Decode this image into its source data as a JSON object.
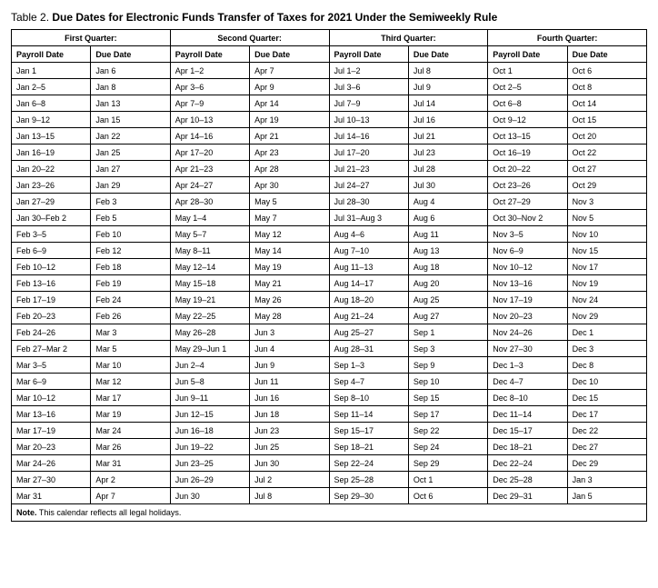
{
  "title_prefix": "Table 2. ",
  "title_main": "Due Dates for Electronic Funds Transfer of Taxes for 2021 Under the Semiweekly Rule",
  "quarters": [
    "First Quarter:",
    "Second Quarter:",
    "Third Quarter:",
    "Fourth Quarter:"
  ],
  "subheads": [
    "Payroll Date",
    "Due Date",
    "Payroll Date",
    "Due Date",
    "Payroll Date",
    "Due Date",
    "Payroll Date",
    "Due Date"
  ],
  "rows": [
    [
      "Jan 1",
      "Jan 6",
      "Apr 1–2",
      "Apr 7",
      "Jul 1–2",
      "Jul 8",
      "Oct 1",
      "Oct 6"
    ],
    [
      "Jan 2–5",
      "Jan 8",
      "Apr 3–6",
      "Apr 9",
      "Jul 3–6",
      "Jul 9",
      "Oct 2–5",
      "Oct 8"
    ],
    [
      "Jan 6–8",
      "Jan 13",
      "Apr 7–9",
      "Apr 14",
      "Jul 7–9",
      "Jul 14",
      "Oct 6–8",
      "Oct 14"
    ],
    [
      "Jan 9–12",
      "Jan 15",
      "Apr 10–13",
      "Apr 19",
      "Jul 10–13",
      "Jul 16",
      "Oct 9–12",
      "Oct 15"
    ],
    [
      "Jan 13–15",
      "Jan 22",
      "Apr 14–16",
      "Apr 21",
      "Jul 14–16",
      "Jul 21",
      "Oct 13–15",
      "Oct 20"
    ],
    [
      "Jan 16–19",
      "Jan 25",
      "Apr 17–20",
      "Apr 23",
      "Jul 17–20",
      "Jul 23",
      "Oct 16–19",
      "Oct 22"
    ],
    [
      "Jan 20–22",
      "Jan 27",
      "Apr 21–23",
      "Apr 28",
      "Jul 21–23",
      "Jul 28",
      "Oct 20–22",
      "Oct 27"
    ],
    [
      "Jan 23–26",
      "Jan 29",
      "Apr 24–27",
      "Apr 30",
      "Jul 24–27",
      "Jul 30",
      "Oct 23–26",
      "Oct 29"
    ],
    [
      "Jan 27–29",
      "Feb 3",
      "Apr 28–30",
      "May 5",
      "Jul 28–30",
      "Aug 4",
      "Oct 27–29",
      "Nov 3"
    ],
    [
      "Jan 30–Feb 2",
      "Feb 5",
      "May 1–4",
      "May 7",
      "Jul 31–Aug 3",
      "Aug 6",
      "Oct 30–Nov 2",
      "Nov 5"
    ],
    [
      "Feb 3–5",
      "Feb 10",
      "May 5–7",
      "May 12",
      "Aug 4–6",
      "Aug 11",
      "Nov 3–5",
      "Nov 10"
    ],
    [
      "Feb 6–9",
      "Feb 12",
      "May 8–11",
      "May 14",
      "Aug 7–10",
      "Aug 13",
      "Nov 6–9",
      "Nov 15"
    ],
    [
      "Feb 10–12",
      "Feb 18",
      "May 12–14",
      "May 19",
      "Aug 11–13",
      "Aug 18",
      "Nov 10–12",
      "Nov 17"
    ],
    [
      "Feb 13–16",
      "Feb 19",
      "May 15–18",
      "May 21",
      "Aug 14–17",
      "Aug 20",
      "Nov 13–16",
      "Nov 19"
    ],
    [
      "Feb 17–19",
      "Feb 24",
      "May 19–21",
      "May 26",
      "Aug 18–20",
      "Aug 25",
      "Nov 17–19",
      "Nov 24"
    ],
    [
      "Feb 20–23",
      "Feb 26",
      "May 22–25",
      "May 28",
      "Aug 21–24",
      "Aug 27",
      "Nov 20–23",
      "Nov 29"
    ],
    [
      "Feb 24–26",
      "Mar 3",
      "May 26–28",
      "Jun 3",
      "Aug 25–27",
      "Sep 1",
      "Nov 24–26",
      "Dec 1"
    ],
    [
      "Feb 27–Mar 2",
      "Mar 5",
      "May 29–Jun 1",
      "Jun 4",
      "Aug 28–31",
      "Sep 3",
      "Nov 27–30",
      "Dec 3"
    ],
    [
      "Mar 3–5",
      "Mar 10",
      "Jun 2–4",
      "Jun 9",
      "Sep 1–3",
      "Sep 9",
      "Dec 1–3",
      "Dec 8"
    ],
    [
      "Mar 6–9",
      "Mar 12",
      "Jun 5–8",
      "Jun 11",
      "Sep 4–7",
      "Sep 10",
      "Dec 4–7",
      "Dec 10"
    ],
    [
      "Mar 10–12",
      "Mar 17",
      "Jun 9–11",
      "Jun 16",
      "Sep 8–10",
      "Sep 15",
      "Dec 8–10",
      "Dec 15"
    ],
    [
      "Mar 13–16",
      "Mar 19",
      "Jun 12–15",
      "Jun 18",
      "Sep 11–14",
      "Sep 17",
      "Dec 11–14",
      "Dec 17"
    ],
    [
      "Mar 17–19",
      "Mar 24",
      "Jun 16–18",
      "Jun 23",
      "Sep 15–17",
      "Sep 22",
      "Dec 15–17",
      "Dec 22"
    ],
    [
      "Mar 20–23",
      "Mar 26",
      "Jun 19–22",
      "Jun 25",
      "Sep 18–21",
      "Sep 24",
      "Dec 18–21",
      "Dec 27"
    ],
    [
      "Mar 24–26",
      "Mar 31",
      "Jun 23–25",
      "Jun 30",
      "Sep 22–24",
      "Sep 29",
      "Dec 22–24",
      "Dec 29"
    ],
    [
      "Mar 27–30",
      "Apr 2",
      "Jun 26–29",
      "Jul 2",
      "Sep 25–28",
      "Oct 1",
      "Dec 25–28",
      "Jan 3"
    ],
    [
      "Mar 31",
      "Apr 7",
      "Jun 30",
      "Jul 8",
      "Sep 29–30",
      "Oct 6",
      "Dec 29–31",
      "Jan 5"
    ]
  ],
  "note_label": "Note.",
  "note_text": " This calendar reflects all legal holidays."
}
